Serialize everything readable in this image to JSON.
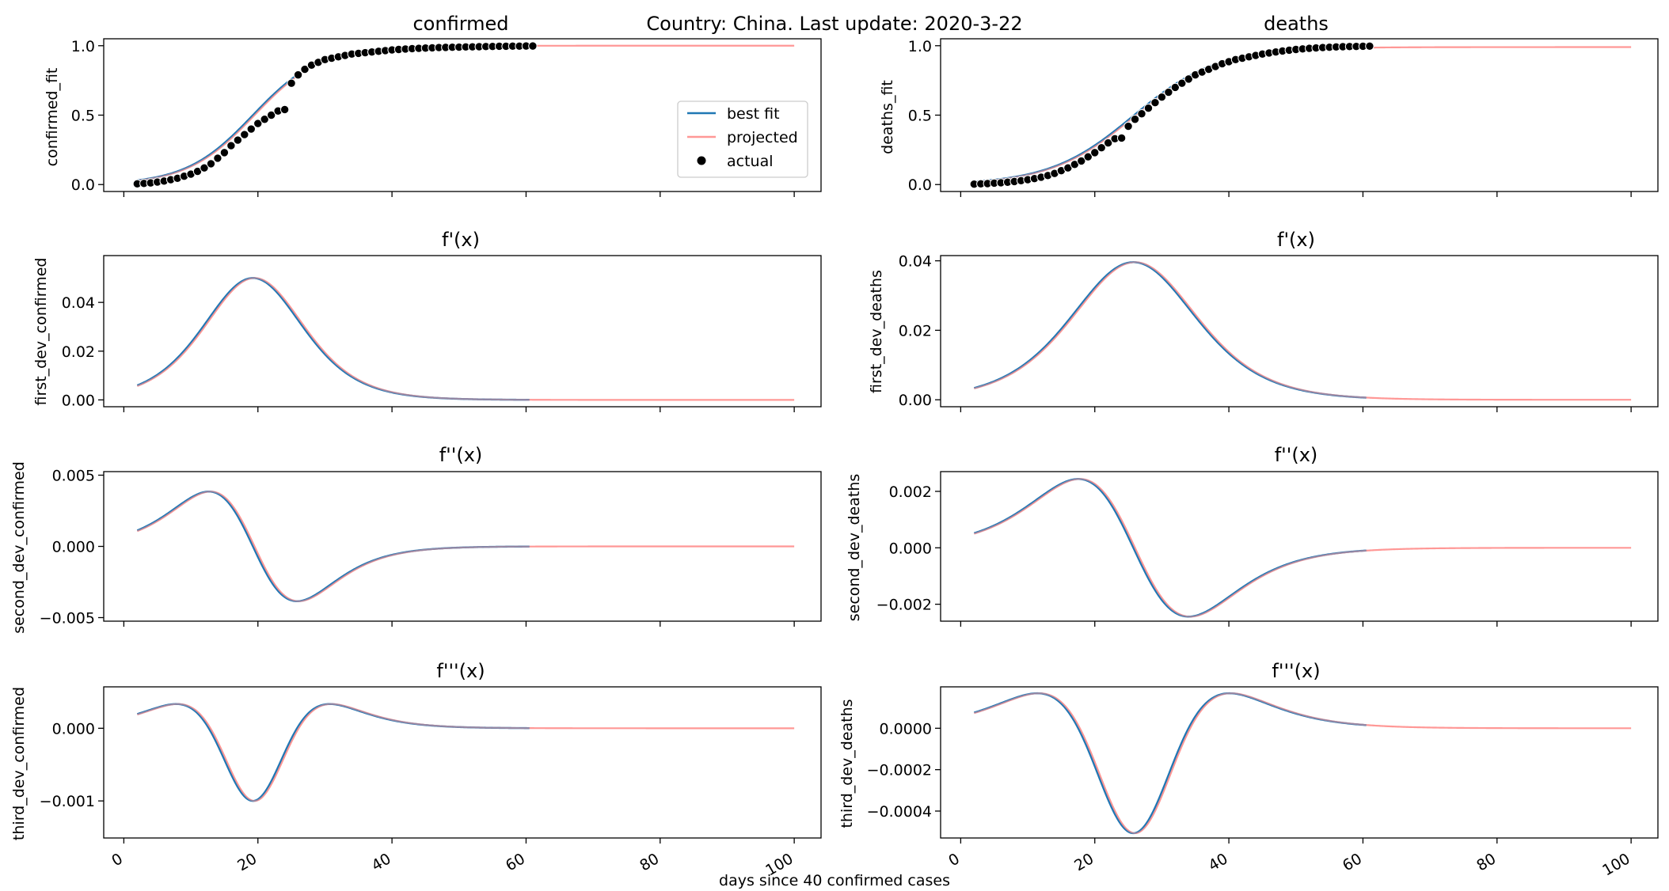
{
  "figure": {
    "suptitle": "Country: China. Last update: 2020-3-22",
    "xlabel": "days since 40 confirmed cases"
  },
  "legend": {
    "placement": "right, inside first panel",
    "entries": [
      {
        "label": "best fit",
        "kind": "line",
        "color": "#1f77b4"
      },
      {
        "label": "projected",
        "kind": "line",
        "color": "#ff9896"
      },
      {
        "label": "actual",
        "kind": "dot",
        "color": "#000000"
      }
    ]
  },
  "colors": {
    "best_fit": "#1f77b4",
    "projected": "#ff9896",
    "actual": "#000000"
  },
  "chart_data": [
    {
      "id": "conf0",
      "type": "line",
      "title": "confirmed",
      "ylabel": "confirmed_fit",
      "xlim": [
        -3,
        104
      ],
      "ylim": [
        -0.05,
        1.05
      ],
      "yticks": [
        {
          "v": 0.0,
          "label": "0.0"
        },
        {
          "v": 0.5,
          "label": "0.5"
        },
        {
          "v": 1.0,
          "label": "1.0"
        }
      ],
      "xticks": [
        0,
        20,
        40,
        60,
        80,
        100
      ],
      "show_xtick_labels": false,
      "model": {
        "L": 1.0,
        "k": 0.2,
        "x0": 19.5,
        "order": 0
      },
      "fit_range": [
        2,
        60.5
      ],
      "projected_range": [
        2,
        100
      ],
      "actual_y": [
        0.005,
        0.008,
        0.012,
        0.018,
        0.025,
        0.035,
        0.045,
        0.06,
        0.075,
        0.095,
        0.12,
        0.15,
        0.19,
        0.23,
        0.28,
        0.32,
        0.36,
        0.4,
        0.44,
        0.47,
        0.5,
        0.53,
        0.54,
        0.73,
        0.79,
        0.83,
        0.86,
        0.88,
        0.9,
        0.91,
        0.92,
        0.93,
        0.94,
        0.945,
        0.95,
        0.955,
        0.96,
        0.965,
        0.97,
        0.973,
        0.976,
        0.979,
        0.981,
        0.983,
        0.985,
        0.987,
        0.988,
        0.989,
        0.99,
        0.991,
        0.992,
        0.993,
        0.994,
        0.995,
        0.996,
        0.996,
        0.997,
        0.997,
        0.998,
        0.998
      ]
    },
    {
      "id": "death0",
      "type": "line",
      "title": "deaths",
      "ylabel": "deaths_fit",
      "xlim": [
        -3,
        104
      ],
      "ylim": [
        -0.05,
        1.05
      ],
      "yticks": [
        {
          "v": 0.0,
          "label": "0.0"
        },
        {
          "v": 0.5,
          "label": "0.5"
        },
        {
          "v": 1.0,
          "label": "1.0"
        }
      ],
      "xticks": [
        0,
        20,
        40,
        60,
        80,
        100
      ],
      "show_xtick_labels": false,
      "model": {
        "L": 0.99,
        "k": 0.16,
        "x0": 26,
        "order": 0
      },
      "fit_range": [
        2,
        60.5
      ],
      "projected_range": [
        2,
        100
      ],
      "actual_y": [
        0.003,
        0.005,
        0.007,
        0.01,
        0.013,
        0.017,
        0.022,
        0.028,
        0.035,
        0.043,
        0.053,
        0.065,
        0.08,
        0.1,
        0.12,
        0.145,
        0.17,
        0.2,
        0.23,
        0.265,
        0.3,
        0.33,
        0.335,
        0.42,
        0.47,
        0.51,
        0.55,
        0.59,
        0.63,
        0.665,
        0.7,
        0.73,
        0.76,
        0.79,
        0.81,
        0.83,
        0.85,
        0.87,
        0.885,
        0.9,
        0.91,
        0.92,
        0.93,
        0.94,
        0.948,
        0.955,
        0.962,
        0.968,
        0.973,
        0.977,
        0.981,
        0.984,
        0.987,
        0.989,
        0.991,
        0.993,
        0.994,
        0.995,
        0.996,
        0.997
      ]
    },
    {
      "id": "conf1",
      "type": "line",
      "title": "f'(x)",
      "ylabel": "first_dev_confirmed",
      "xlim": [
        -3,
        104
      ],
      "ylim": [
        -0.0028,
        0.0592
      ],
      "yticks": [
        {
          "v": 0.0,
          "label": "0.00"
        },
        {
          "v": 0.02,
          "label": "0.02"
        },
        {
          "v": 0.04,
          "label": "0.04"
        }
      ],
      "xticks": [
        0,
        20,
        40,
        60,
        80,
        100
      ],
      "show_xtick_labels": false,
      "model": {
        "L": 1.0,
        "k": 0.2,
        "x0": 19.5,
        "order": 1
      },
      "fit_range": [
        2,
        60.5
      ],
      "projected_range": [
        2,
        100
      ]
    },
    {
      "id": "death1",
      "type": "line",
      "title": "f'(x)",
      "ylabel": "first_dev_deaths",
      "xlim": [
        -3,
        104
      ],
      "ylim": [
        -0.002,
        0.0415
      ],
      "yticks": [
        {
          "v": 0.0,
          "label": "0.00"
        },
        {
          "v": 0.02,
          "label": "0.02"
        },
        {
          "v": 0.04,
          "label": "0.04"
        }
      ],
      "xticks": [
        0,
        20,
        40,
        60,
        80,
        100
      ],
      "show_xtick_labels": false,
      "model": {
        "L": 0.99,
        "k": 0.16,
        "x0": 26,
        "order": 1
      },
      "fit_range": [
        2,
        60.5
      ],
      "projected_range": [
        2,
        100
      ]
    },
    {
      "id": "conf2",
      "type": "line",
      "title": "f''(x)",
      "ylabel": "second_dev_confirmed",
      "xlim": [
        -3,
        104
      ],
      "ylim": [
        -0.00525,
        0.00525
      ],
      "yticks": [
        {
          "v": -0.005,
          "label": "−0.005"
        },
        {
          "v": 0.0,
          "label": "0.000"
        },
        {
          "v": 0.005,
          "label": "0.005"
        }
      ],
      "xticks": [
        0,
        20,
        40,
        60,
        80,
        100
      ],
      "show_xtick_labels": false,
      "model": {
        "L": 1.0,
        "k": 0.2,
        "x0": 19.5,
        "order": 2
      },
      "fit_range": [
        2,
        60.5
      ],
      "projected_range": [
        2,
        100
      ]
    },
    {
      "id": "death2",
      "type": "line",
      "title": "f''(x)",
      "ylabel": "second_dev_deaths",
      "xlim": [
        -3,
        104
      ],
      "ylim": [
        -0.0026,
        0.0027
      ],
      "yticks": [
        {
          "v": -0.002,
          "label": "−0.002"
        },
        {
          "v": 0.0,
          "label": "0.000"
        },
        {
          "v": 0.002,
          "label": "0.002"
        }
      ],
      "xticks": [
        0,
        20,
        40,
        60,
        80,
        100
      ],
      "show_xtick_labels": false,
      "model": {
        "L": 0.99,
        "k": 0.16,
        "x0": 26,
        "order": 2
      },
      "fit_range": [
        2,
        60.5
      ],
      "projected_range": [
        2,
        100
      ]
    },
    {
      "id": "conf3",
      "type": "line",
      "title": "f'''(x)",
      "ylabel": "third_dev_confirmed",
      "xlim": [
        -3,
        104
      ],
      "ylim": [
        -0.00151,
        0.00057
      ],
      "yticks": [
        {
          "v": -0.001,
          "label": "−0.001"
        },
        {
          "v": 0.0,
          "label": "0.000"
        }
      ],
      "xticks": [
        0,
        20,
        40,
        60,
        80,
        100
      ],
      "show_xtick_labels": true,
      "model": {
        "L": 1.0,
        "k": 0.2,
        "x0": 19.5,
        "order": 3
      },
      "fit_range": [
        2,
        60.5
      ],
      "projected_range": [
        2,
        100
      ]
    },
    {
      "id": "death3",
      "type": "line",
      "title": "f'''(x)",
      "ylabel": "third_dev_deaths",
      "xlim": [
        -3,
        104
      ],
      "ylim": [
        -0.00053,
        0.0002
      ],
      "yticks": [
        {
          "v": -0.0004,
          "label": "−0.0004"
        },
        {
          "v": -0.0002,
          "label": "−0.0002"
        },
        {
          "v": 0.0,
          "label": "0.0000"
        }
      ],
      "xticks": [
        0,
        20,
        40,
        60,
        80,
        100
      ],
      "show_xtick_labels": true,
      "model": {
        "L": 0.99,
        "k": 0.16,
        "x0": 26,
        "order": 3
      },
      "fit_range": [
        2,
        60.5
      ],
      "projected_range": [
        2,
        100
      ]
    }
  ]
}
